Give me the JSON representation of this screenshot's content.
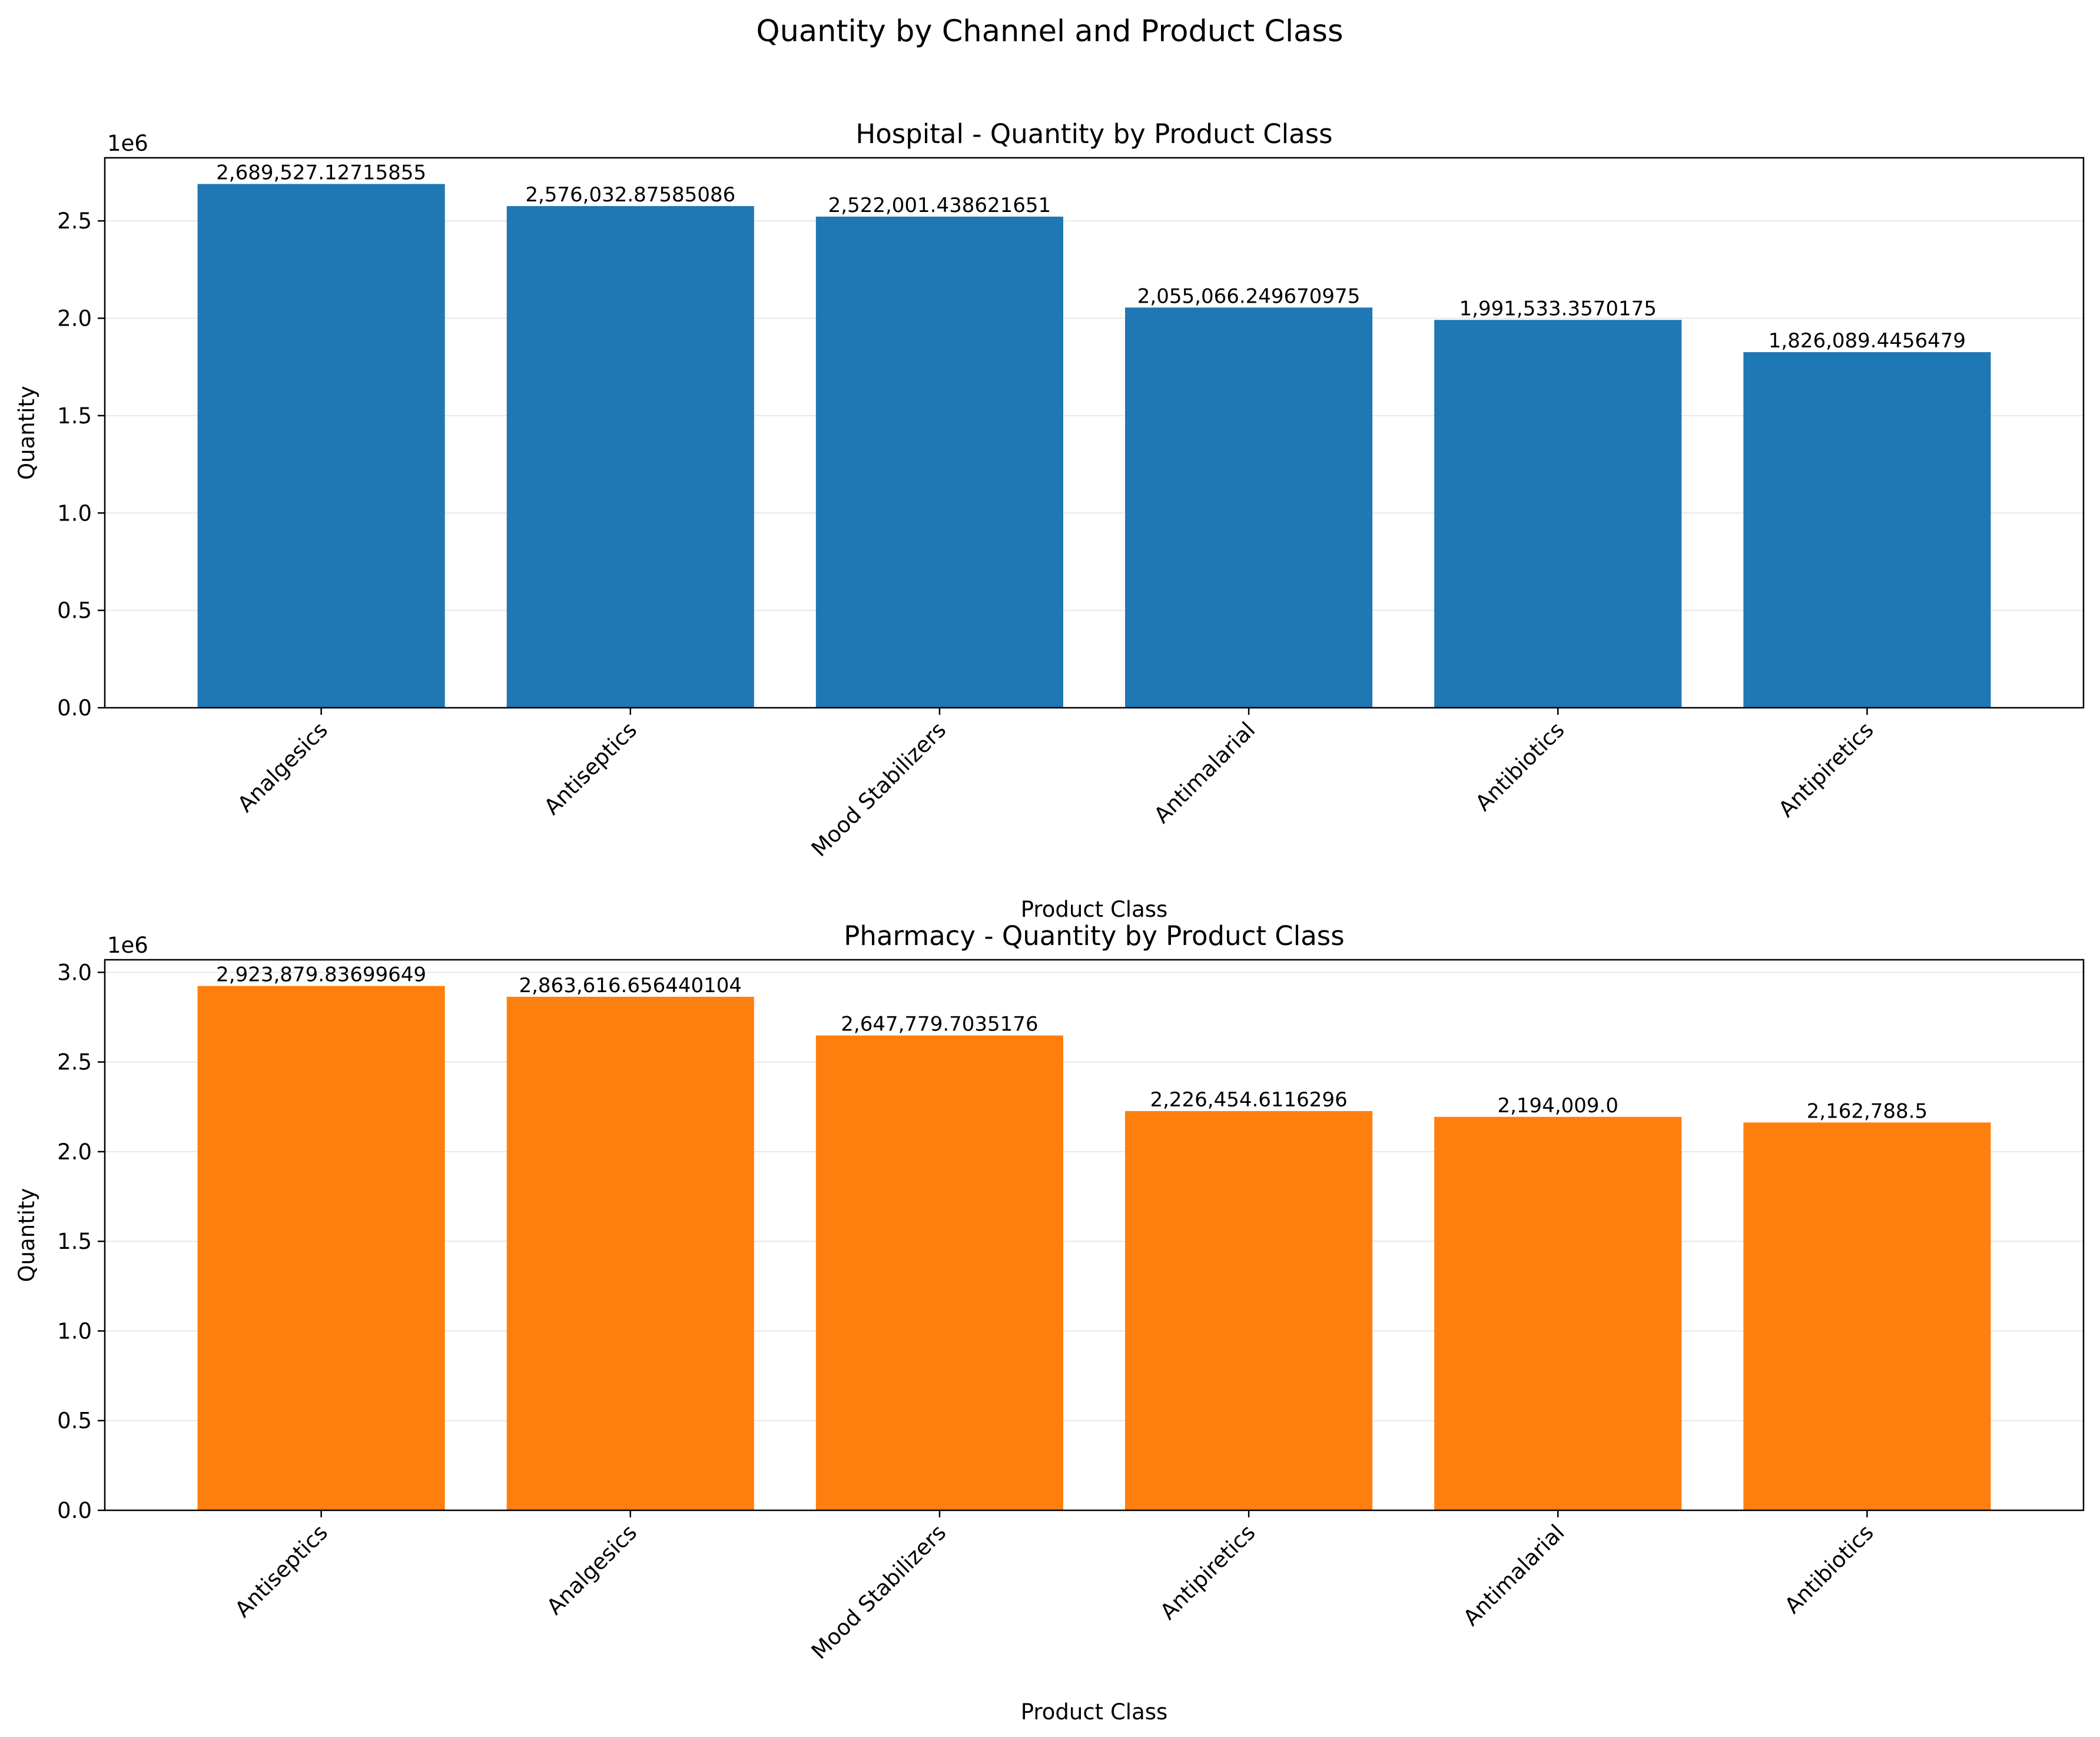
{
  "title": "Quantity by Channel and Product Class",
  "chart_data": [
    {
      "type": "bar",
      "title": "Hospital - Quantity by Product Class",
      "xlabel": "Product Class",
      "ylabel": "Quantity",
      "y_offset_label": "1e6",
      "categories": [
        "Analgesics",
        "Antiseptics",
        "Mood Stabilizers",
        "Antimalarial",
        "Antibiotics",
        "Antipiretics"
      ],
      "values": [
        2689527.12715855,
        2576032.87585086,
        2522001.438621651,
        2055066.249670975,
        1991533.3570175,
        1826089.4456479
      ],
      "value_labels": [
        "2,689,527.12715855",
        "2,576,032.87585086",
        "2,522,001.438621651",
        "2,055,066.249670975",
        "1,991,533.3570175",
        "1,826,089.4456479"
      ],
      "ylim": [
        0,
        2824003.5
      ],
      "yticks": [
        0,
        0.5,
        1.0,
        1.5,
        2.0,
        2.5
      ],
      "ytick_labels": [
        "0.0",
        "0.5",
        "1.0",
        "1.5",
        "2.0",
        "2.5"
      ],
      "grid": "y",
      "color": "#1f77b4"
    },
    {
      "type": "bar",
      "title": "Pharmacy - Quantity by Product Class",
      "xlabel": "Product Class",
      "ylabel": "Quantity",
      "y_offset_label": "1e6",
      "categories": [
        "Antiseptics",
        "Analgesics",
        "Mood Stabilizers",
        "Antipiretics",
        "Antimalarial",
        "Antibiotics"
      ],
      "values": [
        2923879.83699649,
        2863616.656440104,
        2647779.7035176,
        2226454.6116296,
        2194009.0,
        2162788.5
      ],
      "value_labels": [
        "2,923,879.83699649",
        "2,863,616.656440104",
        "2,647,779.7035176",
        "2,226,454.6116296",
        "2,194,009.0",
        "2,162,788.5"
      ],
      "ylim": [
        0,
        3070073.8
      ],
      "yticks": [
        0,
        0.5,
        1.0,
        1.5,
        2.0,
        2.5,
        3.0
      ],
      "ytick_labels": [
        "0.0",
        "0.5",
        "1.0",
        "1.5",
        "2.0",
        "2.5",
        "3.0"
      ],
      "grid": "y",
      "color": "#ff7f0e"
    }
  ]
}
